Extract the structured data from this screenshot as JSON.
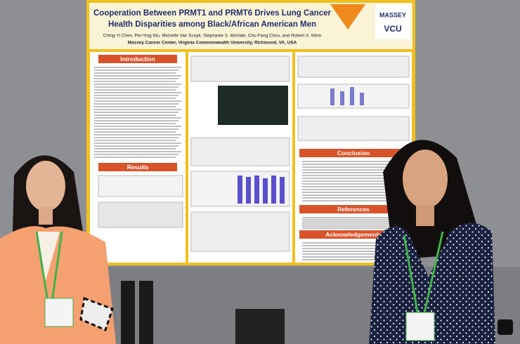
{
  "poster": {
    "title_lines": [
      "Cooperation Between PRMT1 and PRMT6 Drives Lung Cancer",
      "Health Disparities among Black/African American Men"
    ],
    "authors": "Ching-Yi Chen, Pei-Ying Wu, Michelle Van Scoyk, Stephanie S. McHale, Chu-Fang Chou, and Robert A. Winn",
    "affiliation": "Massey Cancer Center, Virginia Commonwealth University, Richmond, VA, USA",
    "logo": [
      "MASSEY",
      "VCU"
    ],
    "sections": [
      "Introduction",
      "Results",
      "Conclusion",
      "References",
      "Acknowledgements"
    ]
  }
}
